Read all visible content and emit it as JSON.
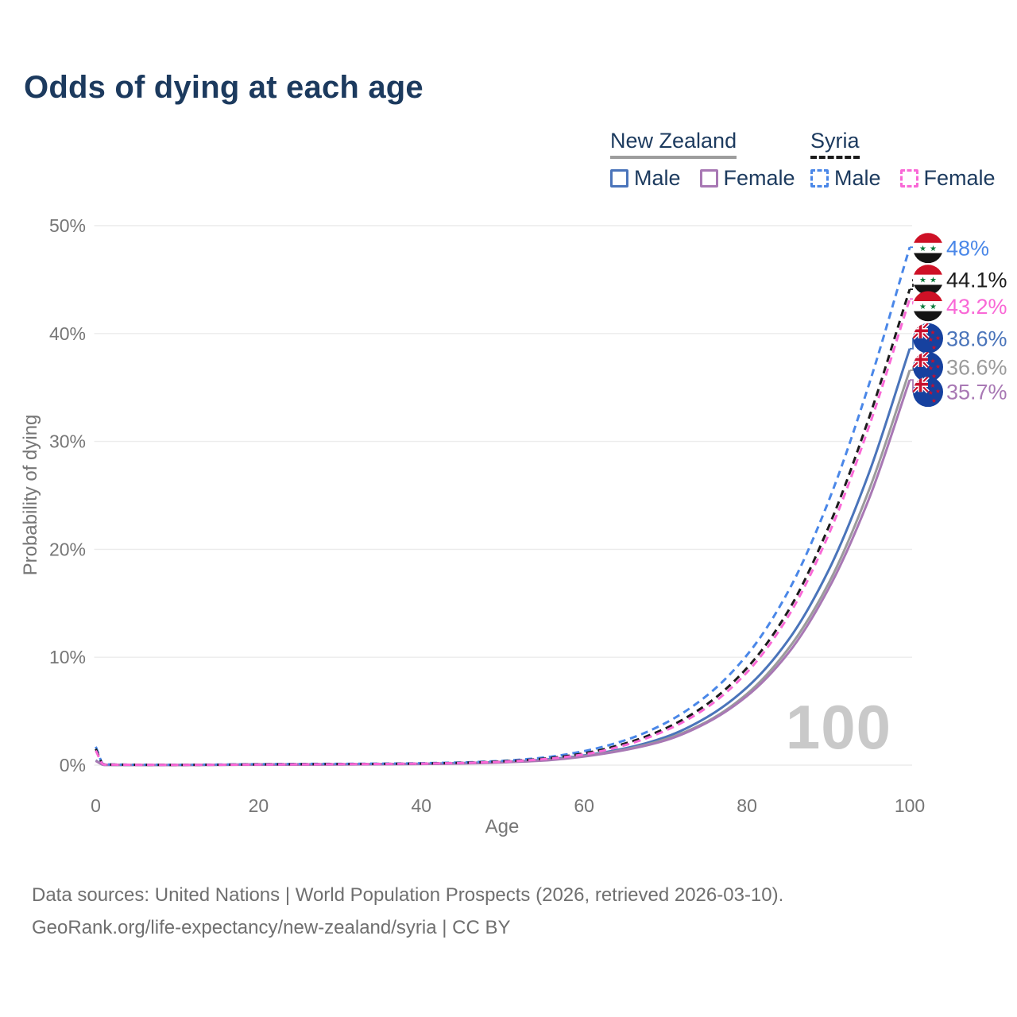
{
  "header": {
    "title": "Odds of dying at each age"
  },
  "legend": {
    "groups": [
      {
        "label": "New Zealand",
        "line_style": "solid",
        "entries": [
          {
            "label": "Male",
            "color": "#4a74ba"
          },
          {
            "label": "Female",
            "color": "#a878b4"
          }
        ]
      },
      {
        "label": "Syria",
        "line_style": "dashed",
        "entries": [
          {
            "label": "Male",
            "color": "#4a87e8"
          },
          {
            "label": "Female",
            "color": "#f968d6"
          }
        ]
      }
    ]
  },
  "chart_data": {
    "type": "line",
    "title": "Odds of dying at each age",
    "xlabel": "Age",
    "ylabel": "Probability of dying",
    "watermark": "100",
    "grid": "horizontal",
    "legend_position": "top-right",
    "xlim": [
      0,
      100
    ],
    "ylim_pct": [
      0,
      50
    ],
    "x_ticks": [
      {
        "age": 0,
        "label": "0"
      },
      {
        "age": 20,
        "label": "20"
      },
      {
        "age": 40,
        "label": "40"
      },
      {
        "age": 60,
        "label": "60"
      },
      {
        "age": 80,
        "label": "80"
      },
      {
        "age": 100,
        "label": "100"
      }
    ],
    "y_ticks": [
      {
        "pct": 0,
        "label": "0%"
      },
      {
        "pct": 10,
        "label": "10%"
      },
      {
        "pct": 20,
        "label": "20%"
      },
      {
        "pct": 30,
        "label": "30%"
      },
      {
        "pct": 40,
        "label": "40%"
      },
      {
        "pct": 50,
        "label": "50%"
      }
    ],
    "ages": [
      0,
      1,
      5,
      10,
      15,
      20,
      25,
      30,
      35,
      40,
      45,
      50,
      55,
      60,
      65,
      70,
      75,
      80,
      85,
      90,
      95,
      100
    ],
    "series": [
      {
        "id": "new-zealand-male",
        "name": "New Zealand Male",
        "country": "new-zealand",
        "sex": "male",
        "dash": false,
        "color": "#4a74ba",
        "values_pct": [
          0.45,
          0.03,
          0.01,
          0.01,
          0.04,
          0.07,
          0.08,
          0.08,
          0.1,
          0.13,
          0.19,
          0.3,
          0.5,
          0.9,
          1.55,
          2.6,
          4.4,
          7.2,
          11.5,
          18.0,
          27.1,
          38.6
        ],
        "end_label": "38.6%"
      },
      {
        "id": "new-zealand-both",
        "name": "New Zealand Both sexes",
        "country": "new-zealand",
        "sex": "both",
        "dash": false,
        "color": "#9b9b9b",
        "values_pct": [
          0.42,
          0.028,
          0.01,
          0.009,
          0.03,
          0.05,
          0.06,
          0.07,
          0.09,
          0.11,
          0.17,
          0.27,
          0.45,
          0.85,
          1.45,
          2.4,
          4.0,
          6.6,
          10.7,
          16.8,
          25.5,
          36.6
        ],
        "end_label": "36.6%"
      },
      {
        "id": "new-zealand-female",
        "name": "New Zealand Female",
        "country": "new-zealand",
        "sex": "female",
        "dash": false,
        "color": "#a878b4",
        "values_pct": [
          0.4,
          0.025,
          0.009,
          0.008,
          0.02,
          0.03,
          0.04,
          0.05,
          0.07,
          0.1,
          0.15,
          0.25,
          0.42,
          0.8,
          1.4,
          2.3,
          3.9,
          6.4,
          10.3,
          16.3,
          24.7,
          35.7
        ],
        "end_label": "35.7%"
      },
      {
        "id": "syria-male",
        "name": "Syria Male",
        "country": "syria",
        "sex": "male",
        "dash": true,
        "color": "#4a87e8",
        "values_pct": [
          1.7,
          0.08,
          0.04,
          0.03,
          0.05,
          0.09,
          0.11,
          0.12,
          0.14,
          0.18,
          0.25,
          0.4,
          0.7,
          1.3,
          2.3,
          3.9,
          6.4,
          10.2,
          16.0,
          24.4,
          35.3,
          48.0
        ],
        "end_label": "48%"
      },
      {
        "id": "syria-both",
        "name": "Syria Both sexes",
        "country": "syria",
        "sex": "both",
        "dash": true,
        "color": "#1c1c1c",
        "values_pct": [
          1.5,
          0.07,
          0.035,
          0.025,
          0.04,
          0.07,
          0.09,
          0.1,
          0.12,
          0.15,
          0.22,
          0.35,
          0.6,
          1.1,
          2.0,
          3.4,
          5.6,
          9.0,
          14.2,
          22.0,
          32.2,
          44.1
        ],
        "end_label": "44.1%"
      },
      {
        "id": "syria-female",
        "name": "Syria Female",
        "country": "syria",
        "sex": "female",
        "dash": true,
        "color": "#f968d6",
        "values_pct": [
          1.35,
          0.06,
          0.03,
          0.02,
          0.03,
          0.05,
          0.07,
          0.09,
          0.11,
          0.14,
          0.2,
          0.32,
          0.55,
          1.0,
          1.85,
          3.2,
          5.3,
          8.6,
          13.7,
          21.3,
          31.4,
          43.2
        ],
        "end_label": "43.2%"
      }
    ],
    "flag_colors": {
      "syria_red": "#ce1126",
      "syria_green": "#0a7a3c",
      "syria_black": "#141414",
      "nz_blue": "#16419f",
      "nz_red": "#c8102e",
      "white": "#ffffff"
    }
  },
  "footer": {
    "line1": "Data sources: United Nations | World Population Prospects (2026, retrieved 2026-03-10).",
    "line2": "GeoRank.org/life-expectancy/new-zealand/syria | CC BY"
  }
}
